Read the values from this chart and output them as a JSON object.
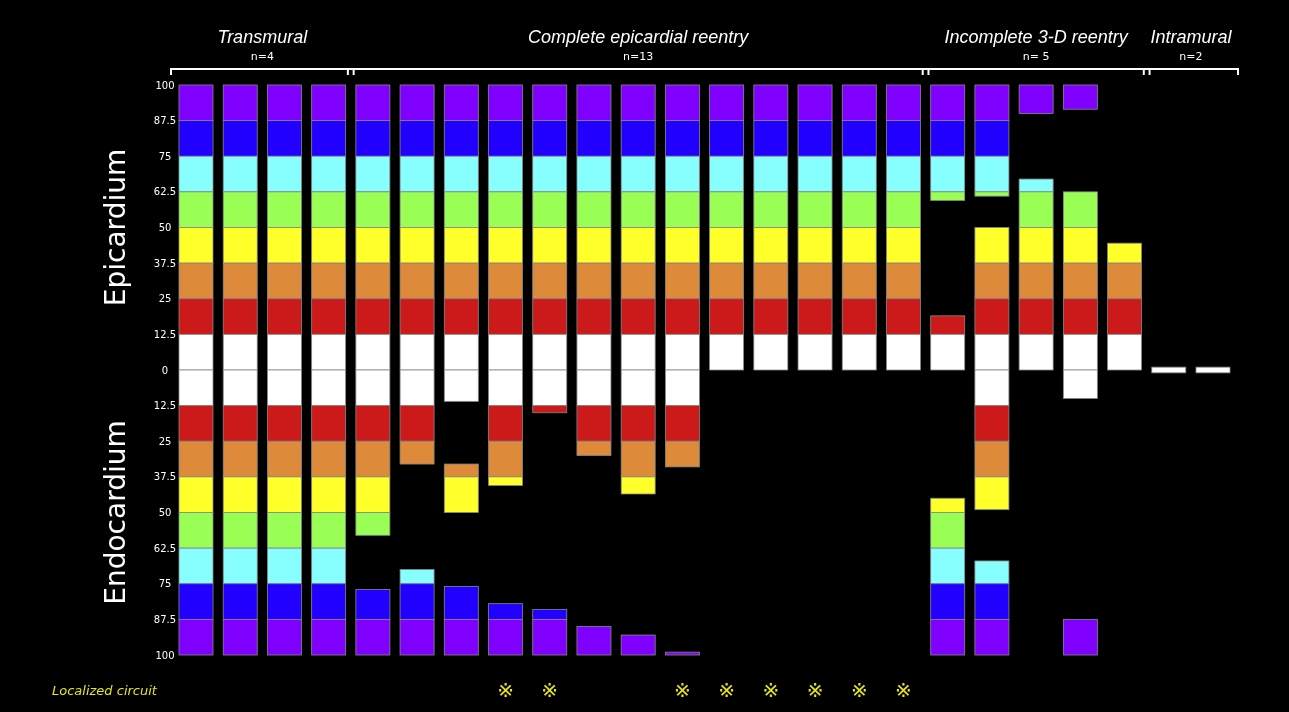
{
  "chart_data": {
    "type": "bar",
    "categories": [
      null,
      null,
      null,
      null,
      null,
      null,
      null,
      "※",
      "※",
      null,
      null,
      "※",
      "※",
      "※",
      "※",
      "※",
      "※",
      null,
      null,
      null,
      null,
      null,
      null,
      null
    ],
    "xlabel": "Localized circuit",
    "ylim": [
      -100,
      100
    ],
    "yticks": [
      {
        "value": 100,
        "label": "100"
      },
      {
        "value": 87.5,
        "label": "87.5"
      },
      {
        "value": 75,
        "label": "75"
      },
      {
        "value": 62.5,
        "label": "62.5"
      },
      {
        "value": 50,
        "label": "50"
      },
      {
        "value": 37.5,
        "label": "37.5"
      },
      {
        "value": 25,
        "label": "25"
      },
      {
        "value": 12.5,
        "label": "12.5"
      },
      {
        "value": 0,
        "label": "0"
      },
      {
        "value": -12.5,
        "label": "12.5"
      },
      {
        "value": -25,
        "label": "25"
      },
      {
        "value": -37.5,
        "label": "37.5"
      },
      {
        "value": -50,
        "label": "50"
      },
      {
        "value": -62.5,
        "label": "62.5"
      },
      {
        "value": -75,
        "label": "75"
      },
      {
        "value": -87.5,
        "label": "87.5"
      },
      {
        "value": -100,
        "label": "100"
      }
    ],
    "grid": false,
    "annotations": [
      "Transmural",
      "n=4",
      "Complete epicardial reentry",
      "n=13",
      "Incomplete 3-D reentry",
      "n= 5",
      "Intramural",
      "n=2",
      "Epicardium",
      "Endocardium"
    ],
    "series": [
      {
        "color": "#7f00ff",
        "base": [
          87.5,
          87.5,
          87.5,
          87.5,
          87.5,
          87.5,
          87.5,
          87.5,
          87.5,
          87.5,
          87.5,
          87.5,
          87.5,
          87.5,
          87.5,
          87.5,
          87.5,
          87.5,
          87.5,
          90,
          91.5,
          null,
          null,
          null
        ],
        "values": [
          12.5,
          12.5,
          12.5,
          12.5,
          12.5,
          12.5,
          12.5,
          12.5,
          12.5,
          12.5,
          12.5,
          12.5,
          12.5,
          12.5,
          12.5,
          12.5,
          12.5,
          12.5,
          12.5,
          10,
          8.5,
          null,
          null,
          null
        ]
      },
      {
        "color": "#2200ff",
        "base": [
          75,
          75,
          75,
          75,
          75,
          75,
          75,
          75,
          75,
          75,
          75,
          75,
          75,
          75,
          75,
          75,
          75,
          75,
          75,
          null,
          null,
          null,
          null,
          null
        ],
        "values": [
          12.5,
          12.5,
          12.5,
          12.5,
          12.5,
          12.5,
          12.5,
          12.5,
          12.5,
          12.5,
          12.5,
          12.5,
          12.5,
          12.5,
          12.5,
          12.5,
          12.5,
          12.5,
          12.5,
          null,
          null,
          null,
          null,
          null
        ]
      },
      {
        "color": "#88ffff",
        "base": [
          62.5,
          62.5,
          62.5,
          62.5,
          62.5,
          62.5,
          62.5,
          62.5,
          62.5,
          62.5,
          62.5,
          62.5,
          62.5,
          62.5,
          62.5,
          62.5,
          62.5,
          62.5,
          62.5,
          62.5,
          null,
          null,
          null,
          null
        ],
        "values": [
          12.5,
          12.5,
          12.5,
          12.5,
          12.5,
          12.5,
          12.5,
          12.5,
          12.5,
          12.5,
          12.5,
          12.5,
          12.5,
          12.5,
          12.5,
          12.5,
          12.5,
          12.5,
          12.5,
          4.5,
          null,
          null,
          null,
          null
        ]
      },
      {
        "color": "#99ff55",
        "base": [
          50,
          50,
          50,
          50,
          50,
          50,
          50,
          50,
          50,
          50,
          50,
          50,
          50,
          50,
          50,
          50,
          50,
          59.5,
          61,
          50,
          50,
          null,
          null,
          null
        ],
        "values": [
          12.5,
          12.5,
          12.5,
          12.5,
          12.5,
          12.5,
          12.5,
          12.5,
          12.5,
          12.5,
          12.5,
          12.5,
          12.5,
          12.5,
          12.5,
          12.5,
          12.5,
          3,
          1.5,
          12.5,
          12.5,
          null,
          null,
          null
        ]
      },
      {
        "color": "#ffff2a",
        "base": [
          37.5,
          37.5,
          37.5,
          37.5,
          37.5,
          37.5,
          37.5,
          37.5,
          37.5,
          37.5,
          37.5,
          37.5,
          37.5,
          37.5,
          37.5,
          37.5,
          37.5,
          null,
          37.5,
          37.5,
          37.5,
          37.5,
          null,
          null
        ],
        "values": [
          12.5,
          12.5,
          12.5,
          12.5,
          12.5,
          12.5,
          12.5,
          12.5,
          12.5,
          12.5,
          12.5,
          12.5,
          12.5,
          12.5,
          12.5,
          12.5,
          12.5,
          null,
          12.5,
          12.5,
          12.5,
          7,
          null,
          null
        ]
      },
      {
        "color": "#dd8b3a",
        "base": [
          25,
          25,
          25,
          25,
          25,
          25,
          25,
          25,
          25,
          25,
          25,
          25,
          25,
          25,
          25,
          25,
          25,
          null,
          25,
          25,
          25,
          25,
          null,
          null
        ],
        "values": [
          12.5,
          12.5,
          12.5,
          12.5,
          12.5,
          12.5,
          12.5,
          12.5,
          12.5,
          12.5,
          12.5,
          12.5,
          12.5,
          12.5,
          12.5,
          12.5,
          12.5,
          null,
          12.5,
          12.5,
          12.5,
          12.5,
          null,
          null
        ]
      },
      {
        "color": "#cc1a1a",
        "base": [
          12.5,
          12.5,
          12.5,
          12.5,
          12.5,
          12.5,
          12.5,
          12.5,
          12.5,
          12.5,
          12.5,
          12.5,
          12.5,
          12.5,
          12.5,
          12.5,
          12.5,
          12.5,
          12.5,
          12.5,
          12.5,
          12.5,
          null,
          null
        ],
        "values": [
          12.5,
          12.5,
          12.5,
          12.5,
          12.5,
          12.5,
          12.5,
          12.5,
          12.5,
          12.5,
          12.5,
          12.5,
          12.5,
          12.5,
          12.5,
          12.5,
          12.5,
          6.5,
          12.5,
          12.5,
          12.5,
          12.5,
          null,
          null
        ]
      },
      {
        "color": "#ffffff",
        "base": [
          0,
          0,
          0,
          0,
          0,
          0,
          0,
          0,
          0,
          0,
          0,
          0,
          0,
          0,
          0,
          0,
          0,
          0,
          0,
          0,
          0,
          0,
          -1,
          -1
        ],
        "values": [
          12.5,
          12.5,
          12.5,
          12.5,
          12.5,
          12.5,
          12.5,
          12.5,
          12.5,
          12.5,
          12.5,
          12.5,
          12.5,
          12.5,
          12.5,
          12.5,
          12.5,
          12.5,
          12.5,
          12.5,
          12.5,
          12.5,
          2,
          2
        ]
      },
      {
        "color": "#ffffff",
        "base": [
          -12.5,
          -12.5,
          -12.5,
          -12.5,
          -12.5,
          -12.5,
          -11,
          -12.5,
          -12.5,
          -12.5,
          -12.5,
          -12.5,
          null,
          null,
          null,
          null,
          null,
          null,
          -12.5,
          null,
          -10,
          null,
          null,
          null
        ],
        "values": [
          12.5,
          12.5,
          12.5,
          12.5,
          12.5,
          12.5,
          11,
          12.5,
          12.5,
          12.5,
          12.5,
          12.5,
          null,
          null,
          null,
          null,
          null,
          null,
          12.5,
          null,
          10,
          null,
          null,
          null
        ]
      },
      {
        "color": "#cc1a1a",
        "base": [
          -25,
          -25,
          -25,
          -25,
          -25,
          -25,
          null,
          -25,
          -15,
          -25,
          -25,
          -25,
          null,
          null,
          null,
          null,
          null,
          null,
          -25,
          null,
          null,
          null,
          null,
          null
        ],
        "values": [
          12.5,
          12.5,
          12.5,
          12.5,
          12.5,
          12.5,
          null,
          12.5,
          2.5,
          12.5,
          12.5,
          12.5,
          null,
          null,
          null,
          null,
          null,
          null,
          12.5,
          null,
          null,
          null,
          null,
          null
        ]
      },
      {
        "color": "#dd8b3a",
        "base": [
          -37.5,
          -37.5,
          -37.5,
          -37.5,
          -37.5,
          -33,
          -37.5,
          -37.5,
          null,
          -30,
          -37.5,
          -34,
          null,
          null,
          null,
          null,
          null,
          null,
          -37.5,
          null,
          null,
          null,
          null,
          null
        ],
        "values": [
          12.5,
          12.5,
          12.5,
          12.5,
          12.5,
          8,
          4.5,
          12.5,
          null,
          5,
          12.5,
          9,
          null,
          null,
          null,
          null,
          null,
          null,
          12.5,
          null,
          null,
          null,
          null,
          null
        ]
      },
      {
        "color": "#ffff2a",
        "base": [
          -50,
          -50,
          -50,
          -50,
          -50,
          null,
          -50,
          -40.5,
          null,
          null,
          -43.5,
          null,
          null,
          null,
          null,
          null,
          null,
          -50,
          -49,
          null,
          null,
          null,
          null,
          null
        ],
        "values": [
          12.5,
          12.5,
          12.5,
          12.5,
          12.5,
          null,
          12.5,
          3,
          null,
          null,
          6,
          null,
          null,
          null,
          null,
          null,
          null,
          5,
          11.5,
          null,
          null,
          null,
          null,
          null
        ]
      },
      {
        "color": "#99ff55",
        "base": [
          -62.5,
          -62.5,
          -62.5,
          -62.5,
          -58,
          null,
          null,
          null,
          null,
          null,
          null,
          null,
          null,
          null,
          null,
          null,
          null,
          -62.5,
          null,
          null,
          null,
          null,
          null,
          null
        ],
        "values": [
          12.5,
          12.5,
          12.5,
          12.5,
          8,
          null,
          null,
          null,
          null,
          null,
          null,
          null,
          null,
          null,
          null,
          null,
          null,
          12.5,
          null,
          null,
          null,
          null,
          null,
          null
        ]
      },
      {
        "color": "#88ffff",
        "base": [
          -75,
          -75,
          -75,
          -75,
          null,
          -75,
          null,
          null,
          null,
          null,
          null,
          null,
          null,
          null,
          null,
          null,
          null,
          -75,
          -75,
          null,
          null,
          null,
          null,
          null
        ],
        "values": [
          12.5,
          12.5,
          12.5,
          12.5,
          null,
          5,
          null,
          null,
          null,
          null,
          null,
          null,
          null,
          null,
          null,
          null,
          null,
          12.5,
          8,
          null,
          null,
          null,
          null,
          null
        ]
      },
      {
        "color": "#2200ff",
        "base": [
          -87.5,
          -87.5,
          -87.5,
          -87.5,
          -87.5,
          -87.5,
          -87.5,
          -87.5,
          -87.5,
          null,
          null,
          null,
          null,
          null,
          null,
          null,
          null,
          -87.5,
          -87.5,
          null,
          null,
          null,
          null,
          null
        ],
        "values": [
          12.5,
          12.5,
          12.5,
          12.5,
          10.5,
          12.5,
          11.5,
          5.5,
          3.5,
          null,
          null,
          null,
          null,
          null,
          null,
          null,
          null,
          12.5,
          12.5,
          null,
          null,
          null,
          null,
          null
        ]
      },
      {
        "color": "#7f00ff",
        "base": [
          -100,
          -100,
          -100,
          -100,
          -100,
          -100,
          -100,
          -100,
          -100,
          -100,
          -100,
          -100,
          null,
          null,
          null,
          null,
          null,
          -100,
          -100,
          null,
          -100,
          null,
          null,
          null
        ],
        "values": [
          12.5,
          12.5,
          12.5,
          12.5,
          12.5,
          12.5,
          12.5,
          12.5,
          12.5,
          10,
          7,
          1,
          null,
          null,
          null,
          null,
          null,
          12.5,
          12.5,
          null,
          12.5,
          null,
          null,
          null
        ]
      }
    ]
  }
}
